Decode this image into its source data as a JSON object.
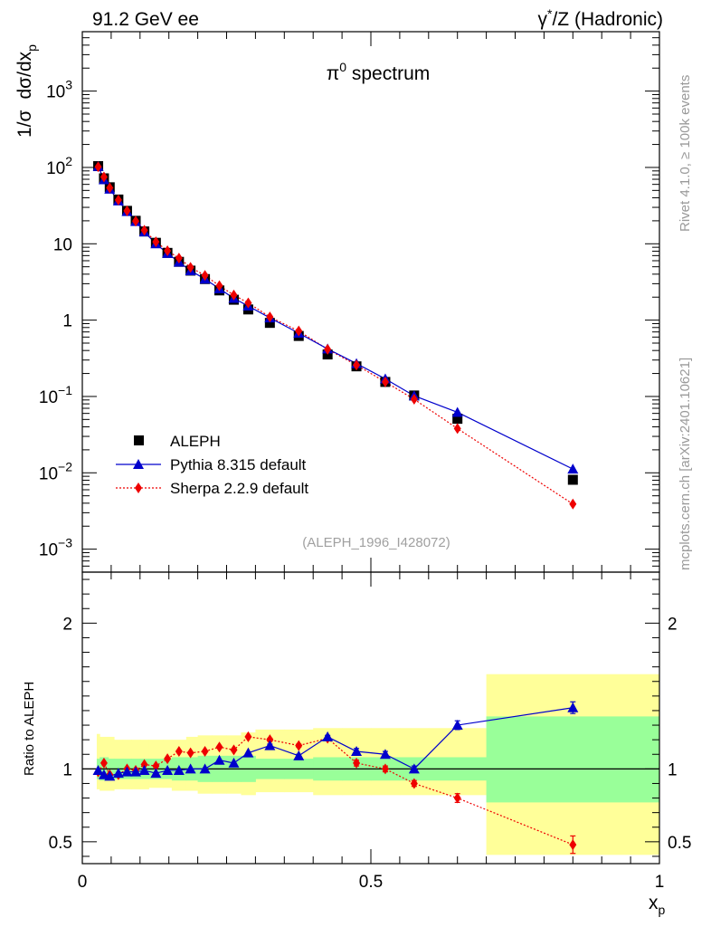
{
  "header": {
    "left": "91.2 GeV ee",
    "right_base": "γ",
    "right_sup": "*",
    "right_rest": "/Z (Hadronic)"
  },
  "side": {
    "rivet": "Rivet 4.1.0, ≥ 100k events",
    "mcplots": "mcplots.cern.ch [arXiv:2401.10621]"
  },
  "colors": {
    "data": "#000000",
    "pythia": "#0000cc",
    "sherpa": "#ee0000",
    "band_inner": "#99ff99",
    "band_outer": "#ffff99"
  },
  "chart_data": [
    {
      "type": "scatter",
      "title_base": "π",
      "title_sup": "0",
      "title_rest": " spectrum",
      "ylabel_a": "1/σ",
      "ylabel_b": "dσ/dx",
      "ylabel_sub": "p",
      "yscale": "log",
      "ylim": [
        0.0005,
        6000
      ],
      "xlim": [
        0,
        1
      ],
      "ytick_labels": [
        {
          "v": 0.001,
          "base": "10",
          "exp": "−3"
        },
        {
          "v": 0.01,
          "base": "10",
          "exp": "−2"
        },
        {
          "v": 0.1,
          "base": "10",
          "exp": "−1"
        },
        {
          "v": 1,
          "base": "1",
          "exp": ""
        },
        {
          "v": 10,
          "base": "10",
          "exp": ""
        },
        {
          "v": 100,
          "base": "10",
          "exp": "2"
        },
        {
          "v": 1000,
          "base": "10",
          "exp": "3"
        }
      ],
      "reference": "(ALEPH_1996_I428072)",
      "legend": [
        "ALEPH",
        "Pythia 8.315 default",
        "Sherpa 2.2.9 default"
      ],
      "x": [
        0.0275,
        0.0375,
        0.0475,
        0.0625,
        0.0775,
        0.0925,
        0.1075,
        0.1275,
        0.1475,
        0.1675,
        0.1875,
        0.2125,
        0.2375,
        0.2625,
        0.2875,
        0.325,
        0.375,
        0.425,
        0.475,
        0.525,
        0.575,
        0.65,
        0.85
      ],
      "series": [
        {
          "name": "ALEPH",
          "values": [
            104,
            72,
            55,
            38,
            27,
            20,
            14.5,
            10.3,
            7.6,
            5.8,
            4.45,
            3.45,
            2.45,
            1.85,
            1.38,
            0.92,
            0.62,
            0.355,
            0.248,
            0.155,
            0.103,
            0.051,
            0.0081
          ]
        },
        {
          "name": "Pythia 8.315 default",
          "values": [
            103,
            69,
            52,
            36.5,
            26.5,
            19.6,
            14.3,
            10.0,
            7.5,
            5.75,
            4.45,
            3.45,
            2.58,
            1.93,
            1.53,
            1.07,
            0.675,
            0.42,
            0.27,
            0.17,
            0.102,
            0.062,
            0.0112
          ]
        },
        {
          "name": "Sherpa 2.2.9 default",
          "values": [
            102,
            75,
            54,
            37.5,
            27,
            19.8,
            15.0,
            10.6,
            8.1,
            6.5,
            4.9,
            3.85,
            2.82,
            2.13,
            1.68,
            1.1,
            0.72,
            0.415,
            0.258,
            0.155,
            0.092,
            0.038,
            0.0039
          ]
        }
      ]
    },
    {
      "type": "line",
      "ylabel": "Ratio to ALEPH",
      "xlabel_base": "x",
      "xlabel_sub": "p",
      "ylim": [
        0.35,
        2.35
      ],
      "xlim": [
        0,
        1
      ],
      "ytick_labels": [
        {
          "v": 0.5,
          "label": "0.5"
        },
        {
          "v": 1,
          "label": "1"
        },
        {
          "v": 2,
          "label": "2"
        }
      ],
      "xtick_labels": [
        {
          "v": 0,
          "label": "0"
        },
        {
          "v": 0.5,
          "label": "0.5"
        },
        {
          "v": 1,
          "label": "1"
        }
      ],
      "bin_edges": [
        0.025,
        0.03,
        0.045,
        0.055,
        0.07,
        0.085,
        0.1,
        0.115,
        0.14,
        0.155,
        0.18,
        0.2,
        0.225,
        0.25,
        0.275,
        0.3,
        0.35,
        0.4,
        0.45,
        0.5,
        0.55,
        0.6,
        0.7,
        1.0
      ],
      "band_inner": [
        [
          0.93,
          1.07
        ],
        [
          0.92,
          1.08
        ],
        [
          0.93,
          1.07
        ],
        [
          0.93,
          1.07
        ],
        [
          0.93,
          1.07
        ],
        [
          0.93,
          1.07
        ],
        [
          0.93,
          1.07
        ],
        [
          0.93,
          1.07
        ],
        [
          0.93,
          1.07
        ],
        [
          0.92,
          1.08
        ],
        [
          0.92,
          1.08
        ],
        [
          0.91,
          1.09
        ],
        [
          0.91,
          1.09
        ],
        [
          0.91,
          1.09
        ],
        [
          0.91,
          1.09
        ],
        [
          0.93,
          1.07
        ],
        [
          0.93,
          1.07
        ],
        [
          0.92,
          1.08
        ],
        [
          0.92,
          1.08
        ],
        [
          0.92,
          1.08
        ],
        [
          0.92,
          1.08
        ],
        [
          0.92,
          1.08
        ],
        [
          0.77,
          1.36
        ]
      ],
      "band_outer": [
        [
          0.86,
          1.24
        ],
        [
          0.85,
          1.22
        ],
        [
          0.85,
          1.22
        ],
        [
          0.86,
          1.2
        ],
        [
          0.86,
          1.2
        ],
        [
          0.86,
          1.2
        ],
        [
          0.86,
          1.2
        ],
        [
          0.87,
          1.2
        ],
        [
          0.87,
          1.2
        ],
        [
          0.85,
          1.2
        ],
        [
          0.85,
          1.22
        ],
        [
          0.83,
          1.23
        ],
        [
          0.83,
          1.23
        ],
        [
          0.83,
          1.23
        ],
        [
          0.82,
          1.25
        ],
        [
          0.84,
          1.27
        ],
        [
          0.84,
          1.27
        ],
        [
          0.82,
          1.28
        ],
        [
          0.82,
          1.28
        ],
        [
          0.82,
          1.28
        ],
        [
          0.82,
          1.28
        ],
        [
          0.82,
          1.28
        ],
        [
          0.41,
          1.65
        ]
      ],
      "series": [
        {
          "name": "Pythia 8.315 default",
          "values": [
            0.99,
            0.96,
            0.95,
            0.97,
            0.98,
            0.98,
            0.99,
            0.97,
            0.99,
            0.99,
            1.0,
            1.0,
            1.06,
            1.04,
            1.11,
            1.16,
            1.09,
            1.22,
            1.12,
            1.1,
            1.0,
            1.3,
            1.42
          ],
          "errors": [
            0.005,
            0.005,
            0.005,
            0.005,
            0.005,
            0.005,
            0.005,
            0.005,
            0.005,
            0.005,
            0.005,
            0.005,
            0.005,
            0.005,
            0.005,
            0.01,
            0.01,
            0.01,
            0.02,
            0.02,
            0.02,
            0.03,
            0.04
          ]
        },
        {
          "name": "Sherpa 2.2.9 default",
          "values": [
            0.98,
            1.04,
            0.96,
            0.96,
            1.0,
            0.99,
            1.03,
            1.02,
            1.07,
            1.12,
            1.11,
            1.12,
            1.15,
            1.13,
            1.22,
            1.2,
            1.16,
            1.21,
            1.04,
            1.0,
            0.9,
            0.8,
            0.48
          ],
          "errors": [
            0.005,
            0.005,
            0.005,
            0.005,
            0.005,
            0.005,
            0.005,
            0.005,
            0.005,
            0.005,
            0.005,
            0.005,
            0.005,
            0.005,
            0.005,
            0.01,
            0.01,
            0.01,
            0.02,
            0.02,
            0.02,
            0.03,
            0.06
          ]
        }
      ]
    }
  ]
}
